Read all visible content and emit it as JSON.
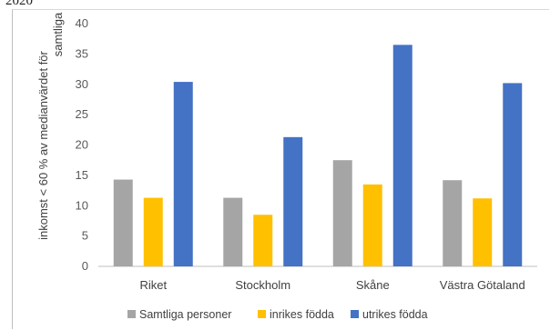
{
  "top_fragment": "2020",
  "chart_data": {
    "type": "bar",
    "title": "",
    "xlabel": "",
    "ylabel": "inkomst < 60 % av medianvärdet för samtliga",
    "categories": [
      "Riket",
      "Stockholm",
      "Skåne",
      "Västra Götaland"
    ],
    "ylim": [
      0,
      40
    ],
    "yticks": [
      0,
      5,
      10,
      15,
      20,
      25,
      30,
      35,
      40
    ],
    "grid": false,
    "legend_position": "bottom",
    "series": [
      {
        "name": "Samtliga personer",
        "color": "#a5a5a5",
        "values": [
          14.3,
          11.3,
          17.5,
          14.2
        ]
      },
      {
        "name": "inrikes födda",
        "color": "#ffc000",
        "values": [
          11.3,
          8.5,
          13.5,
          11.2
        ]
      },
      {
        "name": "utrikes födda",
        "color": "#4472c4",
        "values": [
          30.4,
          21.3,
          36.5,
          30.2
        ]
      }
    ]
  }
}
